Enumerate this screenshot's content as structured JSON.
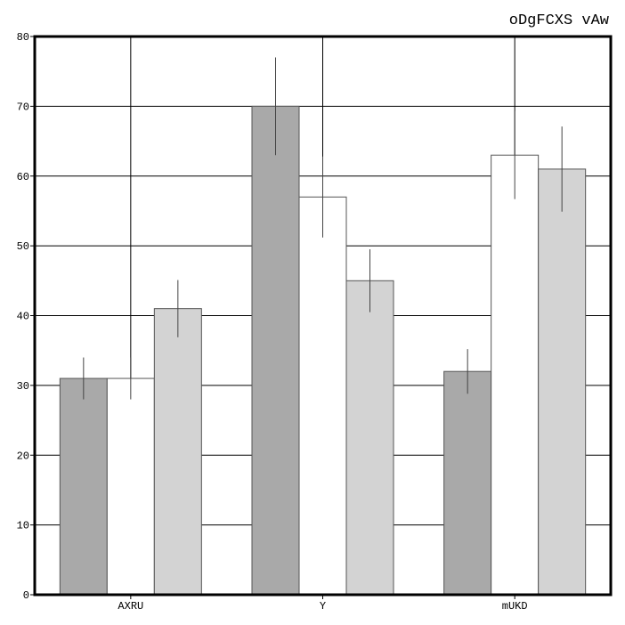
{
  "chart_data": {
    "type": "bar",
    "title": "oDgFCXS vAw",
    "xlabel": "",
    "ylabel": "",
    "ylim": [
      0,
      80
    ],
    "yticks": [
      0,
      10,
      20,
      30,
      40,
      50,
      60,
      70,
      80
    ],
    "grid": true,
    "categories": [
      "AXRU",
      "Y",
      "mUKD"
    ],
    "series": [
      {
        "color": "#a9a9a9",
        "values": [
          31,
          70,
          32
        ],
        "errors": [
          3.0,
          7.0,
          3.2
        ]
      },
      {
        "color": "#ffffff",
        "values": [
          31,
          57,
          63
        ],
        "errors": [
          3.0,
          5.8,
          6.3
        ]
      },
      {
        "color": "#d3d3d3",
        "values": [
          41,
          45,
          61
        ],
        "errors": [
          4.1,
          4.5,
          6.1
        ]
      }
    ]
  }
}
